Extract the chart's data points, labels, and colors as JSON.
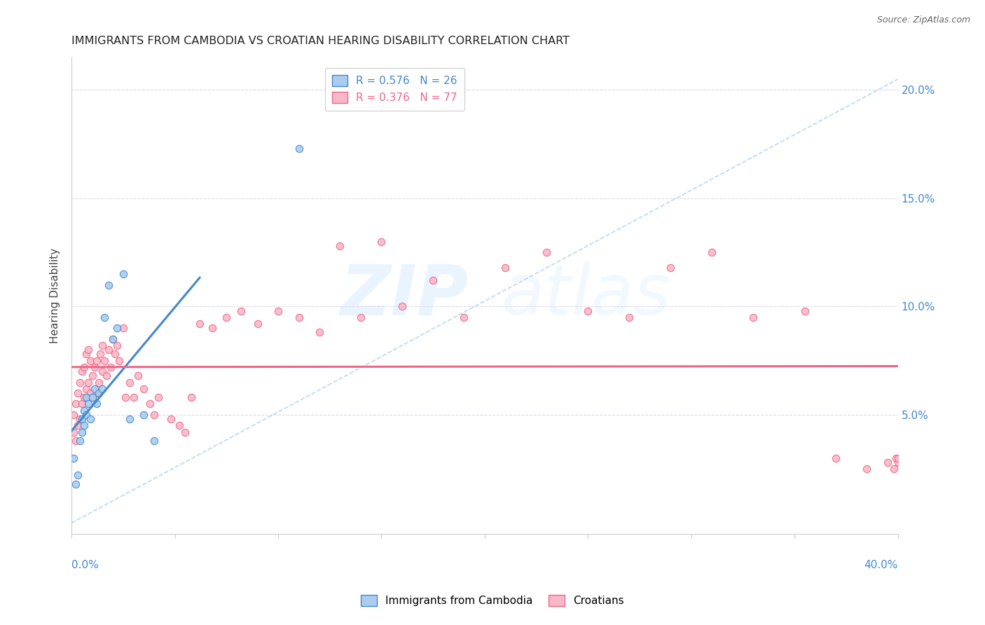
{
  "title": "IMMIGRANTS FROM CAMBODIA VS CROATIAN HEARING DISABILITY CORRELATION CHART",
  "source": "Source: ZipAtlas.com",
  "ylabel": "Hearing Disability",
  "ylabel_right_ticks": [
    "5.0%",
    "10.0%",
    "15.0%",
    "20.0%"
  ],
  "ylabel_right_vals": [
    0.05,
    0.1,
    0.15,
    0.2
  ],
  "xlim": [
    0.0,
    0.4
  ],
  "ylim": [
    -0.005,
    0.215
  ],
  "blue_R": 0.576,
  "blue_N": 26,
  "pink_R": 0.376,
  "pink_N": 77,
  "blue_color": "#aaccee",
  "pink_color": "#f8b8c8",
  "blue_line_color": "#4488cc",
  "pink_line_color": "#ee6688",
  "diagonal_color": "#aaccee",
  "watermark_zip": "ZIP",
  "watermark_atlas": "atlas",
  "title_fontsize": 11.5,
  "source_fontsize": 9,
  "legend_label_blue": "Immigrants from Cambodia",
  "legend_label_pink": "Croatians",
  "blue_scatter_x": [
    0.001,
    0.002,
    0.003,
    0.004,
    0.005,
    0.005,
    0.006,
    0.006,
    0.007,
    0.007,
    0.008,
    0.009,
    0.01,
    0.011,
    0.012,
    0.013,
    0.015,
    0.016,
    0.018,
    0.02,
    0.022,
    0.025,
    0.028,
    0.035,
    0.04,
    0.11
  ],
  "blue_scatter_y": [
    0.03,
    0.018,
    0.022,
    0.038,
    0.042,
    0.048,
    0.045,
    0.052,
    0.05,
    0.058,
    0.055,
    0.048,
    0.058,
    0.062,
    0.055,
    0.06,
    0.062,
    0.095,
    0.11,
    0.085,
    0.09,
    0.115,
    0.048,
    0.05,
    0.038,
    0.173
  ],
  "pink_scatter_x": [
    0.001,
    0.001,
    0.002,
    0.002,
    0.003,
    0.003,
    0.004,
    0.004,
    0.005,
    0.005,
    0.006,
    0.006,
    0.007,
    0.007,
    0.008,
    0.008,
    0.009,
    0.009,
    0.01,
    0.01,
    0.011,
    0.012,
    0.012,
    0.013,
    0.014,
    0.015,
    0.015,
    0.016,
    0.017,
    0.018,
    0.019,
    0.02,
    0.021,
    0.022,
    0.023,
    0.025,
    0.026,
    0.028,
    0.03,
    0.032,
    0.035,
    0.038,
    0.04,
    0.042,
    0.048,
    0.052,
    0.055,
    0.058,
    0.062,
    0.068,
    0.075,
    0.082,
    0.09,
    0.1,
    0.11,
    0.12,
    0.13,
    0.14,
    0.15,
    0.16,
    0.175,
    0.19,
    0.21,
    0.23,
    0.25,
    0.27,
    0.29,
    0.31,
    0.33,
    0.355,
    0.37,
    0.385,
    0.395,
    0.398,
    0.399,
    0.4,
    0.4
  ],
  "pink_scatter_y": [
    0.042,
    0.05,
    0.038,
    0.055,
    0.045,
    0.06,
    0.048,
    0.065,
    0.055,
    0.07,
    0.058,
    0.072,
    0.062,
    0.078,
    0.065,
    0.08,
    0.06,
    0.075,
    0.058,
    0.068,
    0.072,
    0.06,
    0.075,
    0.065,
    0.078,
    0.07,
    0.082,
    0.075,
    0.068,
    0.08,
    0.072,
    0.085,
    0.078,
    0.082,
    0.075,
    0.09,
    0.058,
    0.065,
    0.058,
    0.068,
    0.062,
    0.055,
    0.05,
    0.058,
    0.048,
    0.045,
    0.042,
    0.058,
    0.092,
    0.09,
    0.095,
    0.098,
    0.092,
    0.098,
    0.095,
    0.088,
    0.128,
    0.095,
    0.13,
    0.1,
    0.112,
    0.095,
    0.118,
    0.125,
    0.098,
    0.095,
    0.118,
    0.125,
    0.095,
    0.098,
    0.03,
    0.025,
    0.028,
    0.025,
    0.03,
    0.028,
    0.03
  ]
}
